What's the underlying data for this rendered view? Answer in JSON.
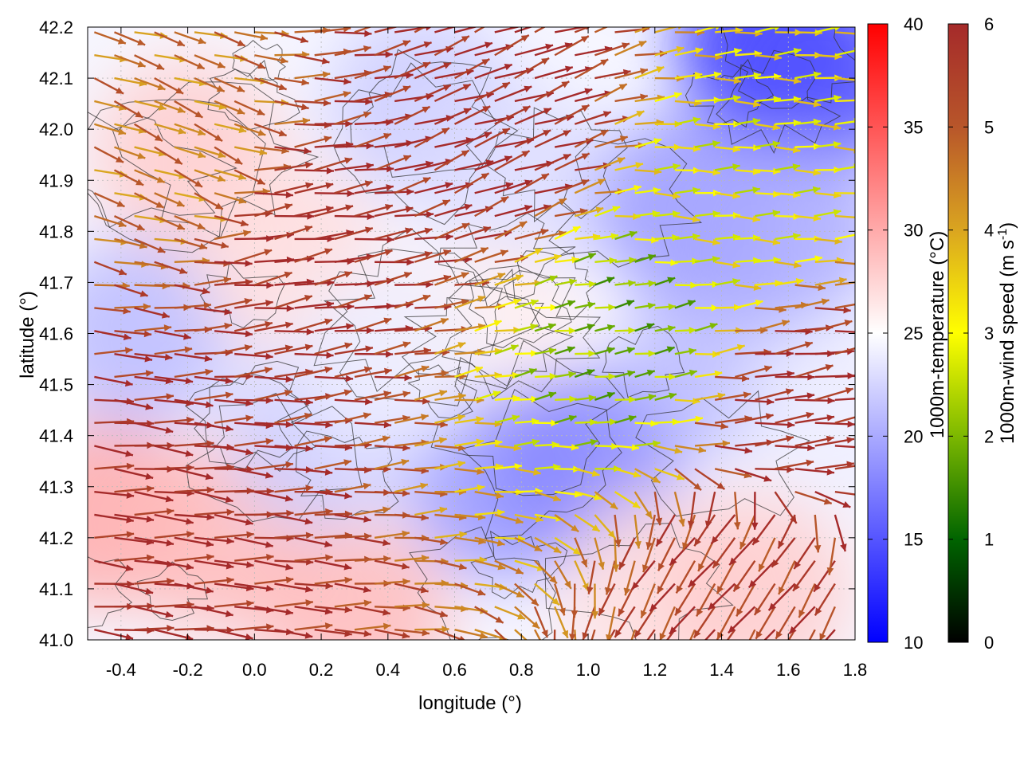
{
  "chart_data": {
    "type": "heatmap",
    "title": "",
    "xlabel": "longitude (°)",
    "ylabel": "latitude (°)",
    "xlim": [
      -0.5,
      1.8
    ],
    "ylim": [
      41.0,
      42.2
    ],
    "xticks": [
      -0.4,
      -0.2,
      0.0,
      0.2,
      0.4,
      0.6,
      0.8,
      1.0,
      1.2,
      1.4,
      1.6,
      1.8
    ],
    "xtick_labels": [
      "-0.4",
      "-0.2",
      "0.0",
      "0.2",
      "0.4",
      "0.6",
      "0.8",
      "1.0",
      "1.2",
      "1.4",
      "1.6",
      "1.8"
    ],
    "yticks": [
      41.0,
      41.1,
      41.2,
      41.3,
      41.4,
      41.5,
      41.6,
      41.7,
      41.8,
      41.9,
      42.0,
      42.1,
      42.2
    ],
    "ytick_labels": [
      "41.0",
      "41.1",
      "41.2",
      "41.3",
      "41.4",
      "41.5",
      "41.6",
      "41.7",
      "41.8",
      "41.9",
      "42.0",
      "42.1",
      "42.2"
    ],
    "grid": true,
    "temperature_colorbar": {
      "label": "1000m-temperature (°C)",
      "range": [
        10,
        40
      ],
      "ticks": [
        10,
        15,
        20,
        25,
        30,
        35,
        40
      ],
      "tick_labels": [
        "10",
        "15",
        "20",
        "25",
        "30",
        "35",
        "40"
      ],
      "colors": [
        "#0000ff",
        "#ffffff",
        "#ff0000"
      ]
    },
    "wind_colorbar": {
      "label_main": "1000m-wind speed (m s",
      "label_exp": "-1",
      "label_end": ")",
      "range": [
        0,
        6
      ],
      "ticks": [
        0,
        1,
        2,
        3,
        4,
        5,
        6
      ],
      "tick_labels": [
        "0",
        "1",
        "2",
        "3",
        "4",
        "5",
        "6"
      ],
      "colors": [
        "#000000",
        "#006400",
        "#7cb800",
        "#ffff00",
        "#daa520",
        "#b8562a",
        "#a52a2a"
      ]
    },
    "temperature_regions": [
      {
        "lon": -0.45,
        "lat": 41.25,
        "temp": 30
      },
      {
        "lon": -0.1,
        "lat": 41.2,
        "temp": 29
      },
      {
        "lon": 0.3,
        "lat": 41.05,
        "temp": 29
      },
      {
        "lon": -0.35,
        "lat": 41.6,
        "temp": 21
      },
      {
        "lon": -0.2,
        "lat": 41.95,
        "temp": 28
      },
      {
        "lon": 0.1,
        "lat": 41.75,
        "temp": 27
      },
      {
        "lon": 0.5,
        "lat": 42.05,
        "temp": 22
      },
      {
        "lon": 0.8,
        "lat": 41.9,
        "temp": 23
      },
      {
        "lon": 0.7,
        "lat": 41.6,
        "temp": 26
      },
      {
        "lon": 0.75,
        "lat": 41.3,
        "temp": 19
      },
      {
        "lon": 1.0,
        "lat": 41.35,
        "temp": 18
      },
      {
        "lon": 1.2,
        "lat": 41.1,
        "temp": 27
      },
      {
        "lon": 1.5,
        "lat": 41.1,
        "temp": 28
      },
      {
        "lon": 1.4,
        "lat": 41.55,
        "temp": 21
      },
      {
        "lon": 1.3,
        "lat": 41.85,
        "temp": 19
      },
      {
        "lon": 1.55,
        "lat": 42.17,
        "temp": 13
      },
      {
        "lon": 1.7,
        "lat": 42.1,
        "temp": 15
      },
      {
        "lon": 1.6,
        "lat": 41.8,
        "temp": 20
      },
      {
        "lon": 1.75,
        "lat": 41.45,
        "temp": 24
      },
      {
        "lon": 0.2,
        "lat": 41.4,
        "temp": 22
      },
      {
        "lon": 0.4,
        "lat": 41.55,
        "temp": 24
      }
    ],
    "wind_field_sample": [
      {
        "lon": -0.45,
        "lat": 41.25,
        "u": 4.5,
        "v": -0.3,
        "speed": 6.0
      },
      {
        "lon": 0.1,
        "lat": 41.8,
        "u": 5.0,
        "v": 0.8,
        "speed": 6.0
      },
      {
        "lon": -0.2,
        "lat": 41.95,
        "u": 2.5,
        "v": -1.0,
        "speed": 4.5
      },
      {
        "lon": 1.5,
        "lat": 41.15,
        "u": -1.8,
        "v": -2.5,
        "speed": 5.5
      },
      {
        "lon": 1.6,
        "lat": 41.45,
        "u": 5.0,
        "v": 0.6,
        "speed": 6.0
      },
      {
        "lon": 1.1,
        "lat": 41.6,
        "u": 1.0,
        "v": 0.2,
        "speed": 2.0
      },
      {
        "lon": 0.7,
        "lat": 42.0,
        "u": 4.0,
        "v": 1.5,
        "speed": 6.0
      },
      {
        "lon": 1.4,
        "lat": 41.85,
        "u": 2.0,
        "v": 0.0,
        "speed": 3.0
      }
    ]
  }
}
